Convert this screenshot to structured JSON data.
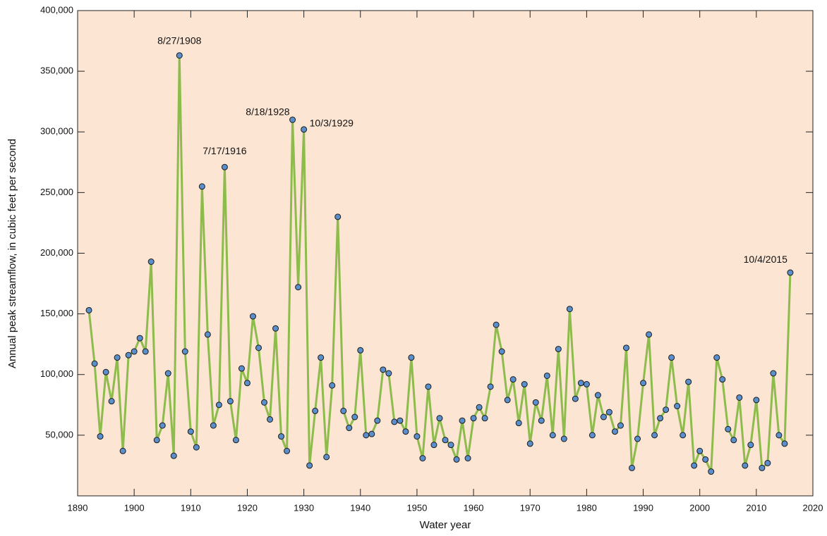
{
  "chart_data": {
    "type": "line",
    "xlabel": "Water year",
    "ylabel": "Annual peak streamflow, in cubic feet per second",
    "x": [
      1892,
      1893,
      1894,
      1895,
      1896,
      1897,
      1898,
      1899,
      1900,
      1901,
      1902,
      1903,
      1904,
      1905,
      1906,
      1907,
      1908,
      1909,
      1910,
      1911,
      1912,
      1913,
      1914,
      1915,
      1916,
      1917,
      1918,
      1919,
      1920,
      1921,
      1922,
      1923,
      1924,
      1925,
      1926,
      1927,
      1928,
      1929,
      1930,
      1931,
      1932,
      1933,
      1934,
      1935,
      1936,
      1937,
      1938,
      1939,
      1940,
      1941,
      1942,
      1943,
      1944,
      1945,
      1946,
      1947,
      1948,
      1949,
      1950,
      1951,
      1952,
      1953,
      1954,
      1955,
      1956,
      1957,
      1958,
      1959,
      1960,
      1961,
      1962,
      1963,
      1964,
      1965,
      1966,
      1967,
      1968,
      1969,
      1970,
      1971,
      1972,
      1973,
      1974,
      1975,
      1976,
      1977,
      1978,
      1979,
      1980,
      1981,
      1982,
      1983,
      1984,
      1985,
      1986,
      1987,
      1988,
      1989,
      1990,
      1991,
      1992,
      1993,
      1994,
      1995,
      1996,
      1997,
      1998,
      1999,
      2000,
      2001,
      2002,
      2003,
      2004,
      2005,
      2006,
      2007,
      2008,
      2009,
      2010,
      2011,
      2012,
      2013,
      2014,
      2015,
      2016
    ],
    "series": [
      {
        "name": "Annual peak streamflow",
        "color": "#8dbb4c",
        "marker_color": "#5b8fcb",
        "values": [
          153000,
          109000,
          49000,
          102000,
          78000,
          114000,
          37000,
          116000,
          119000,
          130000,
          119000,
          193000,
          46000,
          58000,
          101000,
          33000,
          363000,
          119000,
          53000,
          40000,
          255000,
          133000,
          58000,
          75000,
          271000,
          78000,
          46000,
          105000,
          93000,
          148000,
          122000,
          77000,
          63000,
          138000,
          49000,
          37000,
          310000,
          172000,
          302000,
          25000,
          70000,
          114000,
          32000,
          91000,
          230000,
          70000,
          56000,
          65000,
          120000,
          50000,
          51000,
          62000,
          104000,
          101000,
          61000,
          62000,
          53000,
          114000,
          49000,
          31000,
          90000,
          42000,
          64000,
          46000,
          42000,
          30000,
          62000,
          31000,
          64000,
          73000,
          64000,
          90000,
          141000,
          119000,
          79000,
          96000,
          60000,
          92000,
          43000,
          77000,
          62000,
          99000,
          50000,
          121000,
          47000,
          154000,
          80000,
          93000,
          92000,
          50000,
          83000,
          65000,
          69000,
          53000,
          58000,
          122000,
          23000,
          47000,
          93000,
          133000,
          50000,
          64000,
          71000,
          114000,
          74000,
          50000,
          94000,
          25000,
          37000,
          30000,
          20000,
          114000,
          96000,
          55000,
          46000,
          81000,
          25000,
          42000,
          79000,
          23000,
          27000,
          101000,
          50000,
          43000,
          184000
        ]
      }
    ],
    "annotations": [
      {
        "text": "8/27/1908",
        "x": 1908,
        "y": 363000
      },
      {
        "text": "7/17/1916",
        "x": 1916,
        "y": 271000
      },
      {
        "text": "8/18/1928",
        "x": 1928,
        "y": 310000
      },
      {
        "text": "10/3/1929",
        "x": 1930,
        "y": 302000
      },
      {
        "text": "10/4/2015",
        "x": 2016,
        "y": 184000
      }
    ],
    "xlim": [
      1890,
      2020
    ],
    "xticks": [
      1890,
      1900,
      1910,
      1920,
      1930,
      1940,
      1950,
      1960,
      1970,
      1980,
      1990,
      2000,
      2010,
      2020
    ],
    "ylim": [
      0,
      400000
    ],
    "yticks": [
      {
        "value": 50000,
        "label": "50,000"
      },
      {
        "value": 100000,
        "label": "100,000"
      },
      {
        "value": 150000,
        "label": "150,000"
      },
      {
        "value": 200000,
        "label": "200,000"
      },
      {
        "value": 250000,
        "label": "250,000"
      },
      {
        "value": 300000,
        "label": "300,000"
      },
      {
        "value": 350000,
        "label": "350,000"
      },
      {
        "value": 400000,
        "label": "400,000"
      }
    ],
    "background": "#fde5d3"
  }
}
